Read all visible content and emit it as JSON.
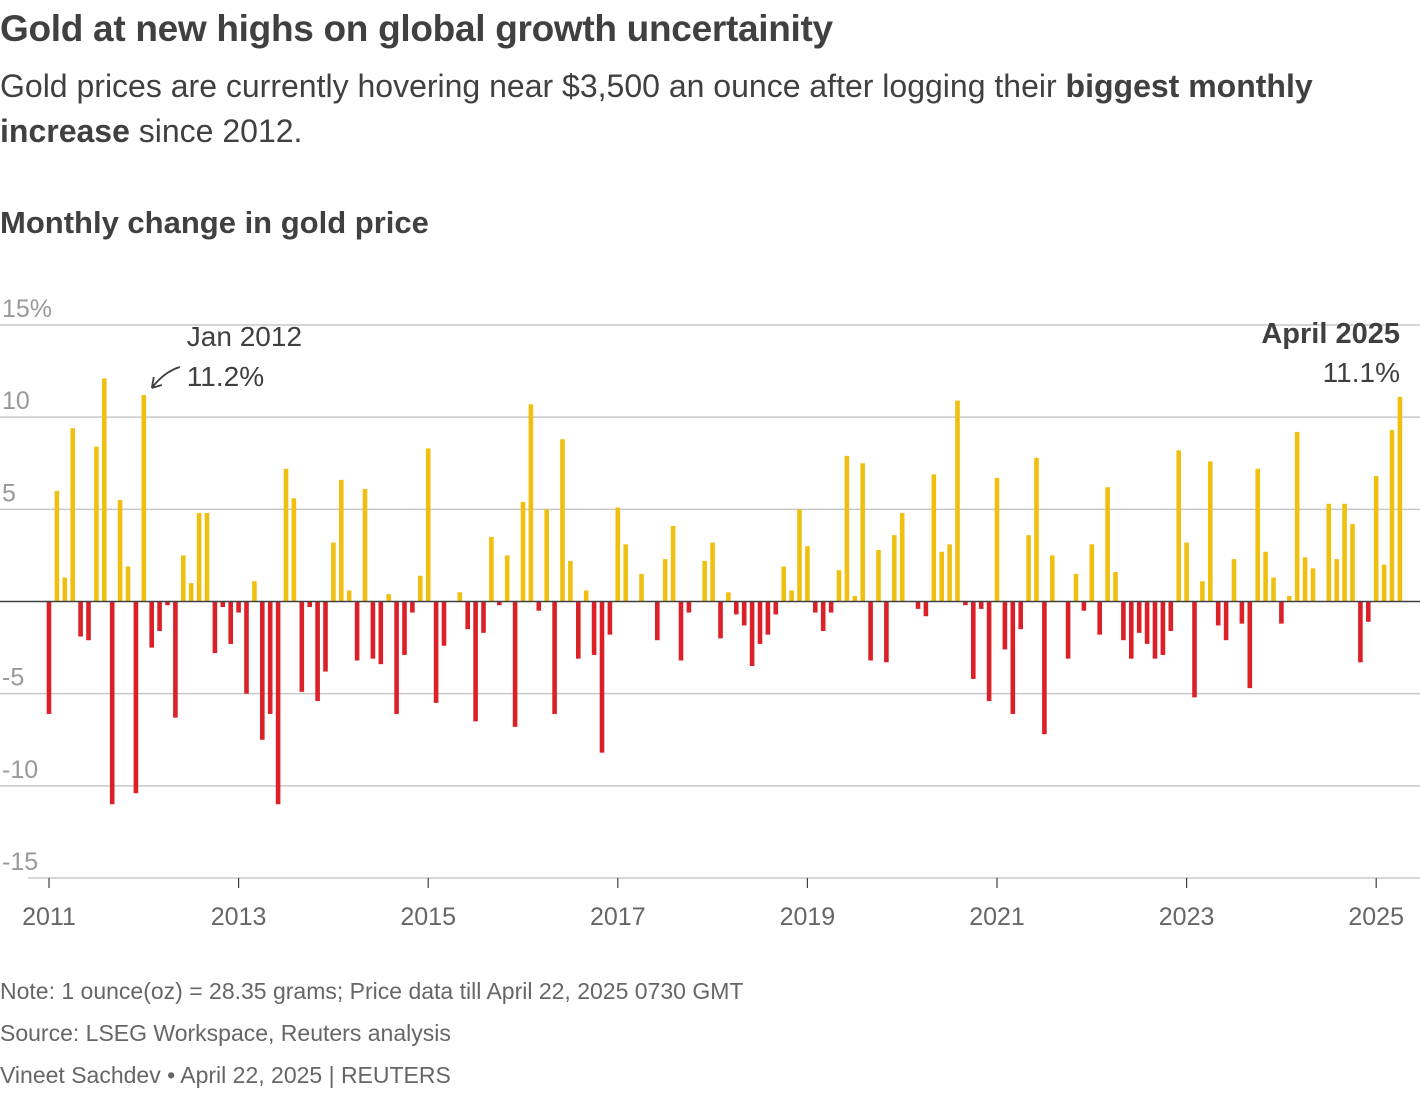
{
  "headline": "Gold at new highs on global growth uncertainity",
  "dek": {
    "part1": "Gold prices are currently hovering near $3,500 an ounce after logging their ",
    "bold": "biggest monthly increase",
    "part2": " since 2012."
  },
  "colors": {
    "positive": "#f0c010",
    "negative": "#dc2027",
    "grid": "#c8c8c8",
    "axis": "#404040"
  },
  "chart_data": {
    "type": "bar",
    "title": "Monthly change in gold price",
    "x_start": "2011-01",
    "x_end": "2025-04",
    "ylim": [
      -15,
      15
    ],
    "yticks": [
      {
        "value": 15,
        "label": "15%"
      },
      {
        "value": 10,
        "label": "10"
      },
      {
        "value": 5,
        "label": "5"
      },
      {
        "value": -5,
        "label": "-5"
      },
      {
        "value": -10,
        "label": "-10"
      },
      {
        "value": -15,
        "label": "-15"
      }
    ],
    "xticks": [
      "2011",
      "2013",
      "2015",
      "2017",
      "2019",
      "2021",
      "2023",
      "2025"
    ],
    "grid": true,
    "values": [
      -6.1,
      6.0,
      1.3,
      9.4,
      -1.9,
      -2.1,
      8.4,
      12.1,
      -11.0,
      5.5,
      1.9,
      -10.4,
      11.2,
      -2.5,
      -1.6,
      -0.2,
      -6.3,
      2.5,
      1.0,
      4.8,
      4.8,
      -2.8,
      -0.3,
      -2.3,
      -0.6,
      -5.0,
      1.1,
      -7.5,
      -6.1,
      -11.0,
      7.2,
      5.6,
      -4.9,
      -0.3,
      -5.4,
      -3.8,
      3.2,
      6.6,
      0.6,
      -3.2,
      6.1,
      -3.1,
      -3.4,
      0.4,
      -6.1,
      -2.9,
      -0.6,
      1.4,
      8.3,
      -5.5,
      -2.4,
      0.0,
      0.5,
      -1.5,
      -6.5,
      -1.7,
      3.5,
      -0.2,
      2.5,
      -6.8,
      5.4,
      10.7,
      -0.5,
      5.0,
      -6.1,
      8.8,
      2.2,
      -3.1,
      0.6,
      -2.9,
      -8.2,
      -1.8,
      5.1,
      3.1,
      0.0,
      1.5,
      0.0,
      -2.1,
      2.3,
      4.1,
      -3.2,
      -0.6,
      0.0,
      2.2,
      3.2,
      -2.0,
      0.5,
      -0.7,
      -1.3,
      -3.5,
      -2.3,
      -1.8,
      -0.7,
      1.9,
      0.6,
      5.0,
      3.0,
      -0.6,
      -1.6,
      -0.6,
      1.7,
      7.9,
      0.3,
      7.5,
      -3.2,
      2.8,
      -3.3,
      3.6,
      4.8,
      0.0,
      -0.4,
      -0.8,
      6.9,
      2.7,
      3.1,
      10.9,
      -0.2,
      -4.2,
      -0.4,
      -5.4,
      6.7,
      -2.6,
      -6.1,
      -1.5,
      3.6,
      7.8,
      -7.2,
      2.5,
      0.0,
      -3.1,
      1.5,
      -0.5,
      3.1,
      -1.8,
      6.2,
      1.6,
      -2.1,
      -3.1,
      -1.7,
      -2.3,
      -3.1,
      -2.9,
      -1.6,
      8.2,
      3.2,
      -5.2,
      1.1,
      7.6,
      -1.3,
      -2.1,
      2.3,
      -1.2,
      -4.7,
      7.2,
      2.7,
      1.3,
      -1.2,
      0.3,
      9.2,
      2.4,
      1.8,
      0.0,
      5.3,
      2.3,
      5.3,
      4.2,
      -3.3,
      -1.1,
      6.8,
      2.0,
      9.3,
      11.1
    ]
  },
  "annotations": {
    "jan2012": {
      "label": "Jan 2012",
      "value_text": "11.2%",
      "index": 12
    },
    "apr2025": {
      "label": "April 2025",
      "value_text": "11.1%",
      "index": 171
    }
  },
  "footer": {
    "note": "Note: 1 ounce(oz) = 28.35 grams; Price data till April 22, 2025 0730 GMT",
    "source": "Source: LSEG Workspace, Reuters analysis",
    "byline": "Vineet Sachdev • April 22, 2025 | REUTERS"
  }
}
